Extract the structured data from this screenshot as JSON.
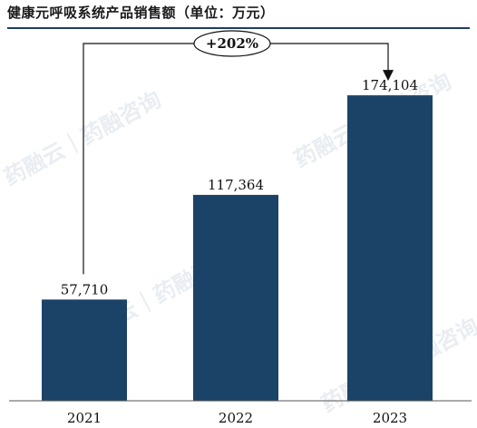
{
  "title": "健康元呼吸系统产品销售额（单位：万元）",
  "watermark_text": "药融云｜药融咨询",
  "colors": {
    "bar": "#1b4368",
    "accent": "#1f3d66",
    "text": "#111111"
  },
  "chart_data": {
    "type": "bar",
    "categories": [
      "2021",
      "2022",
      "2023"
    ],
    "values": [
      57710,
      117364,
      174104
    ],
    "value_labels": [
      "57,710",
      "117,364",
      "174,104"
    ],
    "ylim": [
      0,
      200000
    ],
    "annotation": {
      "text": "+202%",
      "from": "2021",
      "to": "2023"
    },
    "grid": false,
    "legend": "none"
  }
}
